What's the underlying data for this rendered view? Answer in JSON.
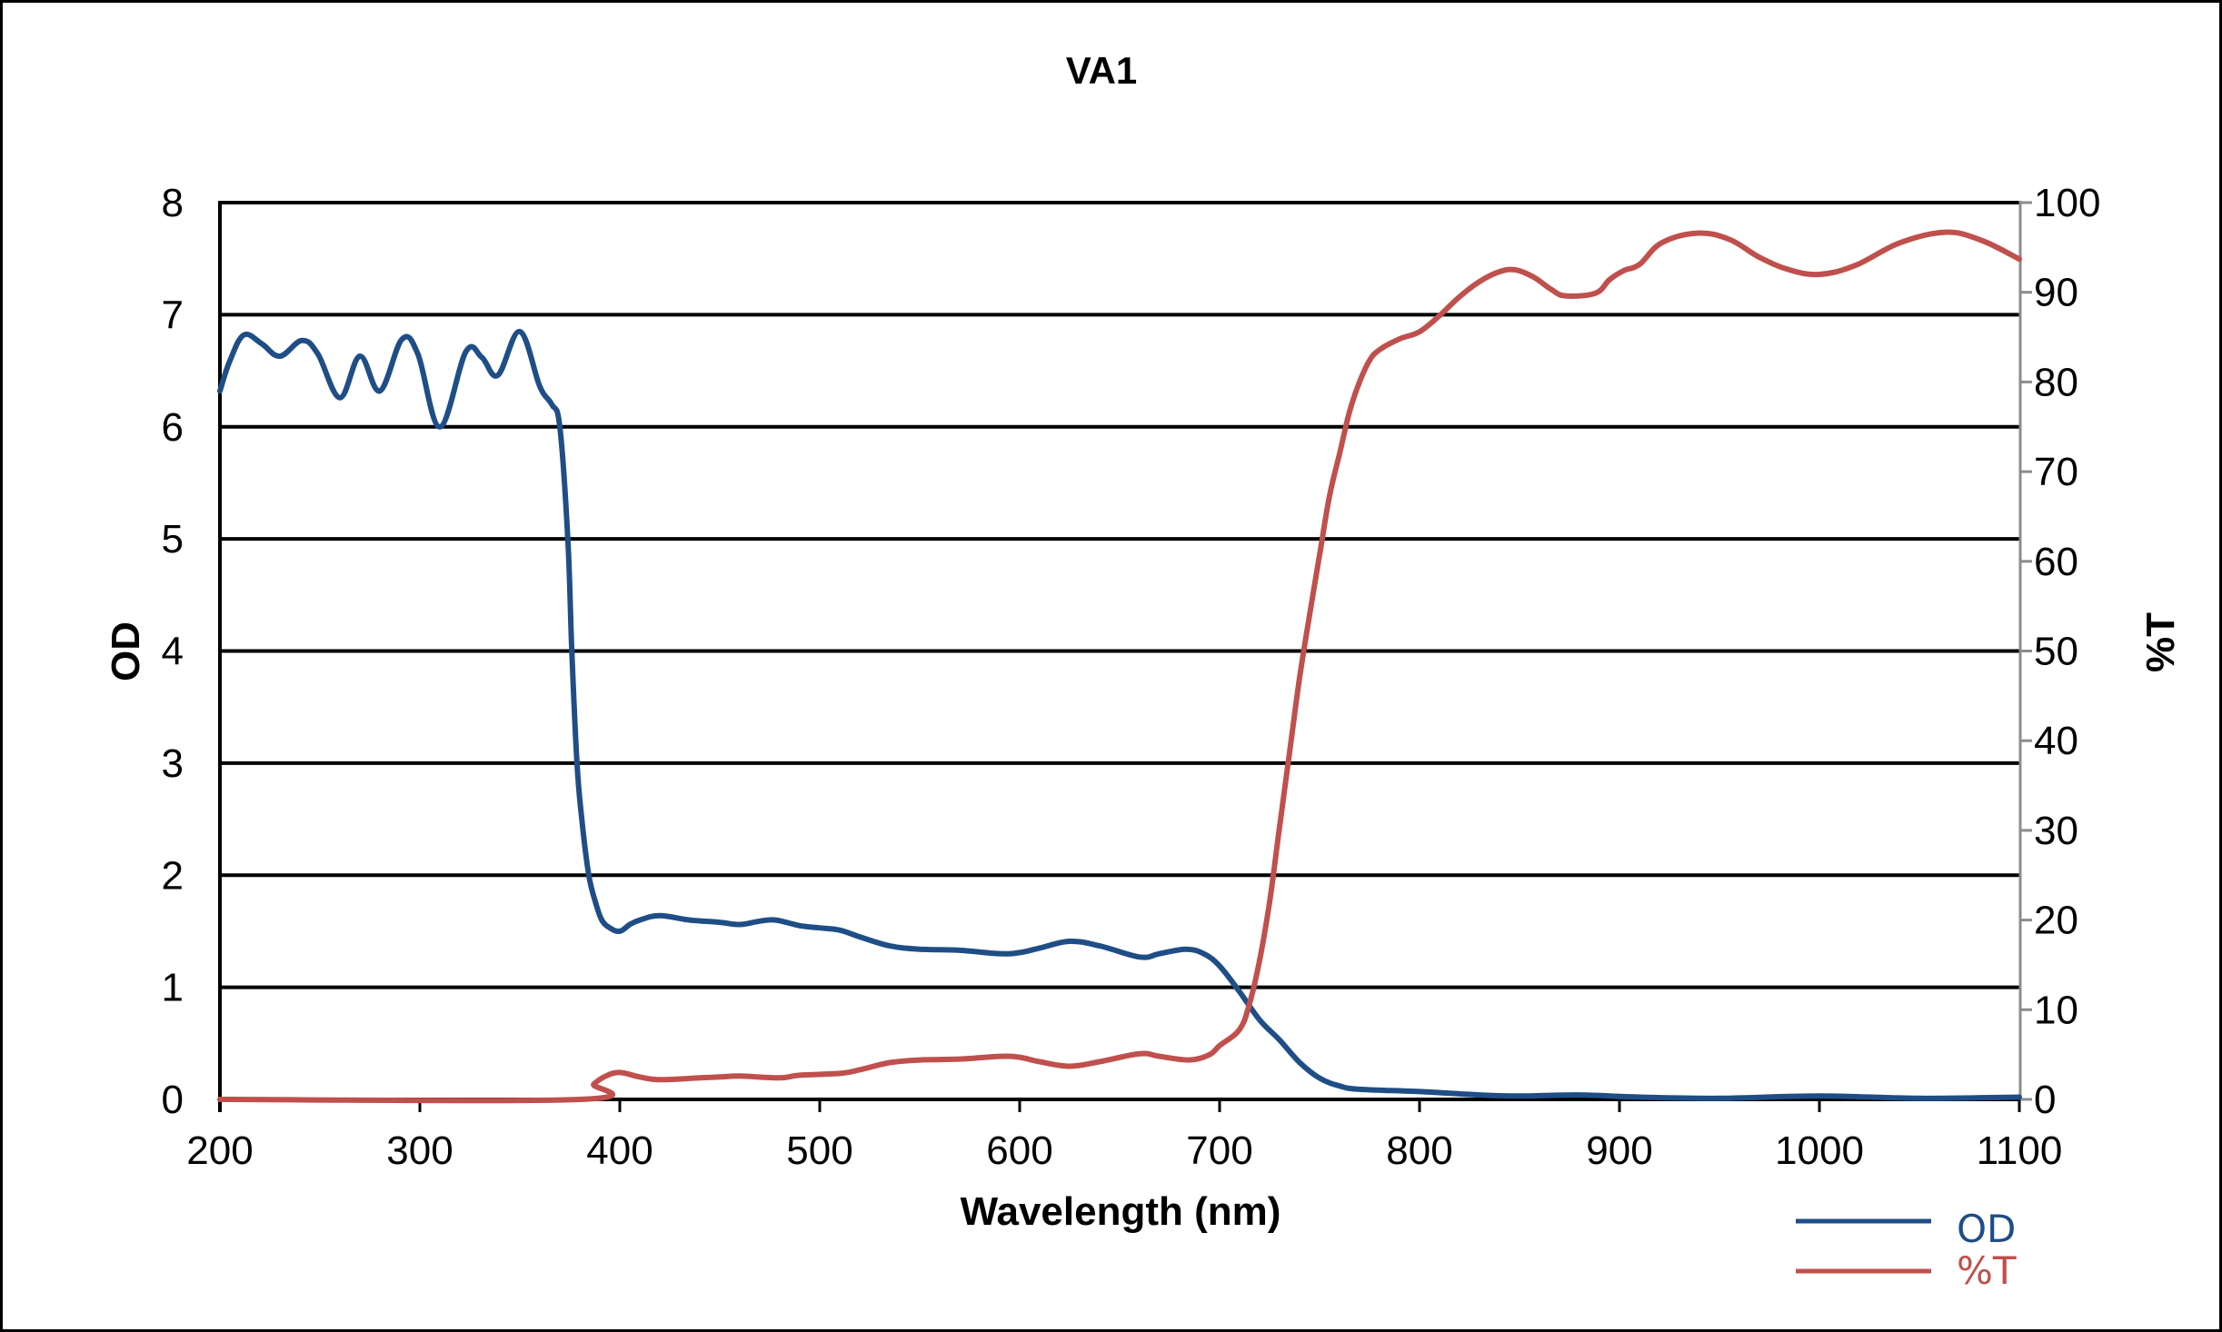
{
  "chart_data": {
    "type": "line",
    "title": "VA1",
    "xlabel": "Wavelength (nm)",
    "ylabel": "OD",
    "y2label": "%T",
    "xlim": [
      200,
      1100
    ],
    "ylim": [
      0,
      8
    ],
    "y2lim": [
      0,
      100
    ],
    "xticks": [
      "200",
      "300",
      "400",
      "500",
      "600",
      "700",
      "800",
      "900",
      "1000",
      "1100"
    ],
    "yticks": [
      "0",
      "1",
      "2",
      "3",
      "4",
      "5",
      "6",
      "7",
      "8"
    ],
    "y2ticks": [
      "0",
      "10",
      "20",
      "30",
      "40",
      "50",
      "60",
      "70",
      "80",
      "90",
      "100"
    ],
    "grid": true,
    "legend_position": "bottom-right",
    "series": [
      {
        "name": "OD",
        "axis": "left",
        "color": "#1f4e86",
        "x": [
          200,
          205,
          212,
          221,
          230,
          241,
          249,
          260,
          270,
          280,
          291,
          299,
          310,
          323,
          331,
          339,
          350,
          360,
          366,
          370,
          374,
          376,
          378.6,
          381,
          384.5,
          388,
          391,
          395,
          400,
          405,
          410,
          420,
          435,
          450,
          460,
          470,
          478,
          490,
          500,
          510,
          520,
          535,
          550,
          570,
          590,
          600,
          610,
          625,
          640,
          660,
          670,
          683,
          692,
          700,
          710,
          720,
          730,
          740,
          750,
          760,
          770,
          800,
          830,
          850,
          880,
          910,
          950,
          1000,
          1050,
          1100
        ],
        "values": [
          6.32,
          6.59,
          6.82,
          6.74,
          6.63,
          6.77,
          6.65,
          6.26,
          6.63,
          6.32,
          6.78,
          6.65,
          6.0,
          6.67,
          6.62,
          6.46,
          6.85,
          6.36,
          6.2,
          6.0,
          5.0,
          4.0,
          3.0,
          2.5,
          2.0,
          1.75,
          1.6,
          1.53,
          1.5,
          1.56,
          1.6,
          1.64,
          1.6,
          1.58,
          1.56,
          1.59,
          1.6,
          1.55,
          1.53,
          1.51,
          1.45,
          1.37,
          1.34,
          1.33,
          1.3,
          1.31,
          1.35,
          1.41,
          1.37,
          1.27,
          1.3,
          1.34,
          1.3,
          1.19,
          0.96,
          0.71,
          0.53,
          0.33,
          0.19,
          0.12,
          0.09,
          0.07,
          0.04,
          0.03,
          0.04,
          0.02,
          0.01,
          0.03,
          0.01,
          0.02
        ]
      },
      {
        "name": "%T",
        "axis": "right",
        "color": "#c0504d",
        "x": [
          200,
          380,
          387,
          393,
          400,
          410,
          420,
          440,
          450,
          460,
          480,
          490,
          510,
          520,
          535,
          550,
          570,
          590,
          600,
          610,
          625,
          640,
          660,
          670,
          685,
          695,
          700,
          710,
          715,
          720,
          725,
          730,
          735,
          740,
          745,
          750,
          755,
          760,
          765,
          770,
          775,
          780,
          790,
          800,
          810,
          820,
          830,
          840,
          848,
          857,
          866,
          873,
          888,
          895,
          902,
          910,
          921,
          939,
          955,
          970,
          985,
          1000,
          1018,
          1040,
          1063,
          1081,
          1100
        ],
        "values": [
          0,
          0,
          1.7,
          2.6,
          3.0,
          2.5,
          2.2,
          2.4,
          2.5,
          2.6,
          2.4,
          2.7,
          2.9,
          3.3,
          4.1,
          4.4,
          4.5,
          4.8,
          4.7,
          4.2,
          3.7,
          4.2,
          5.1,
          4.8,
          4.4,
          5.0,
          6.0,
          7.8,
          10.7,
          15.5,
          22,
          30.4,
          38.7,
          47,
          54,
          60.7,
          67.3,
          72,
          76.7,
          80,
          82.4,
          83.6,
          84.8,
          85.6,
          87.4,
          89.5,
          91.2,
          92.3,
          92.5,
          91.7,
          90.3,
          89.6,
          89.9,
          91.4,
          92.4,
          93.1,
          95.5,
          96.6,
          95.9,
          93.9,
          92.5,
          92.0,
          93.0,
          95.5,
          96.7,
          95.8,
          93.7
        ]
      }
    ]
  }
}
